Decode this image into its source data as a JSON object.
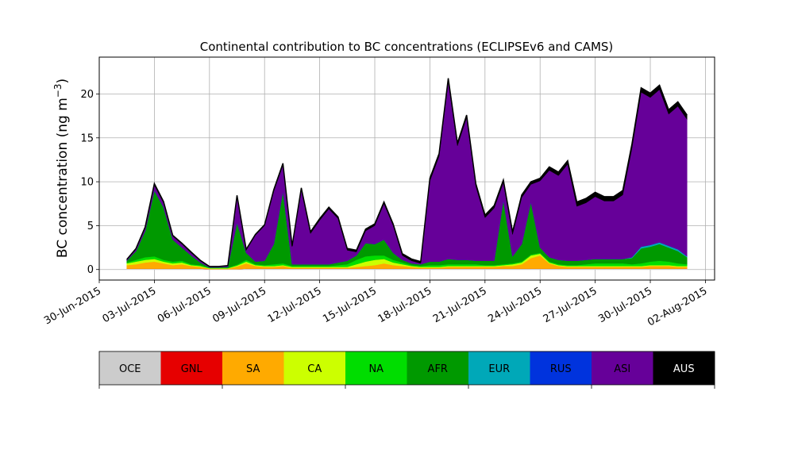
{
  "chart_data": {
    "type": "area",
    "title": "Continental contribution to BC concentrations (ECLIPSEv6 and CAMS)",
    "xlabel": "",
    "ylabel_main": "BC concentration (ng m",
    "ylabel_sup": "−3",
    "ylabel_close": ")",
    "stacked": true,
    "grid": true,
    "ylim": [
      -1.2,
      24.2
    ],
    "xlim": [
      "2015-06-30T00:00",
      "2015-08-02T12:00"
    ],
    "x_ticks": [
      "30-Jun-2015",
      "03-Jul-2015",
      "06-Jul-2015",
      "09-Jul-2015",
      "12-Jul-2015",
      "15-Jul-2015",
      "18-Jul-2015",
      "21-Jul-2015",
      "24-Jul-2015",
      "27-Jul-2015",
      "30-Jul-2015",
      "02-Aug-2015"
    ],
    "y_ticks": [
      "0",
      "5",
      "10",
      "15",
      "20"
    ],
    "x": [
      "2015-07-01T12:00",
      "2015-07-02T00:00",
      "2015-07-02T12:00",
      "2015-07-03T00:00",
      "2015-07-03T12:00",
      "2015-07-04T00:00",
      "2015-07-04T12:00",
      "2015-07-05T00:00",
      "2015-07-05T12:00",
      "2015-07-06T00:00",
      "2015-07-06T12:00",
      "2015-07-07T00:00",
      "2015-07-07T12:00",
      "2015-07-08T00:00",
      "2015-07-08T12:00",
      "2015-07-09T00:00",
      "2015-07-09T12:00",
      "2015-07-10T00:00",
      "2015-07-10T12:00",
      "2015-07-11T00:00",
      "2015-07-11T12:00",
      "2015-07-12T00:00",
      "2015-07-12T12:00",
      "2015-07-13T00:00",
      "2015-07-13T12:00",
      "2015-07-14T00:00",
      "2015-07-14T12:00",
      "2015-07-15T00:00",
      "2015-07-15T12:00",
      "2015-07-16T00:00",
      "2015-07-16T12:00",
      "2015-07-17T00:00",
      "2015-07-17T12:00",
      "2015-07-18T00:00",
      "2015-07-18T12:00",
      "2015-07-19T00:00",
      "2015-07-19T12:00",
      "2015-07-20T00:00",
      "2015-07-20T12:00",
      "2015-07-21T00:00",
      "2015-07-21T12:00",
      "2015-07-22T00:00",
      "2015-07-22T12:00",
      "2015-07-23T00:00",
      "2015-07-23T12:00",
      "2015-07-24T00:00",
      "2015-07-24T12:00",
      "2015-07-25T00:00",
      "2015-07-25T12:00",
      "2015-07-26T00:00",
      "2015-07-26T12:00",
      "2015-07-27T00:00",
      "2015-07-27T12:00",
      "2015-07-28T00:00",
      "2015-07-28T12:00",
      "2015-07-29T00:00",
      "2015-07-29T12:00",
      "2015-07-30T00:00",
      "2015-07-30T12:00",
      "2015-07-31T00:00",
      "2015-07-31T12:00",
      "2015-08-01T00:00"
    ],
    "series": [
      {
        "name": "OCE",
        "color": "#cccccc",
        "values": [
          0.1,
          0.1,
          0.1,
          0.1,
          0.1,
          0.1,
          0.1,
          0.1,
          0.1,
          0.05,
          0.05,
          0.05,
          0.05,
          0.1,
          0.1,
          0.1,
          0.1,
          0.1,
          0.1,
          0.1,
          0.1,
          0.1,
          0.1,
          0.1,
          0.1,
          0.1,
          0.1,
          0.1,
          0.1,
          0.1,
          0.1,
          0.1,
          0.1,
          0.1,
          0.1,
          0.1,
          0.1,
          0.1,
          0.1,
          0.1,
          0.1,
          0.1,
          0.1,
          0.1,
          0.1,
          0.1,
          0.1,
          0.1,
          0.1,
          0.1,
          0.1,
          0.1,
          0.1,
          0.1,
          0.1,
          0.1,
          0.1,
          0.1,
          0.1,
          0.1,
          0.1,
          0.1
        ]
      },
      {
        "name": "GNL",
        "color": "#e60000",
        "values": [
          0,
          0,
          0,
          0,
          0,
          0,
          0,
          0,
          0,
          0,
          0,
          0,
          0,
          0,
          0,
          0,
          0,
          0,
          0,
          0,
          0,
          0,
          0,
          0,
          0,
          0,
          0,
          0,
          0,
          0,
          0,
          0,
          0,
          0,
          0,
          0,
          0,
          0,
          0,
          0,
          0,
          0,
          0,
          0,
          0,
          0,
          0,
          0,
          0,
          0,
          0,
          0,
          0,
          0,
          0,
          0,
          0,
          0,
          0,
          0,
          0,
          0
        ]
      },
      {
        "name": "SA",
        "color": "#ffaa00",
        "values": [
          0.4,
          0.5,
          0.7,
          0.8,
          0.6,
          0.4,
          0.5,
          0.3,
          0.2,
          0.05,
          0.05,
          0.05,
          0.3,
          0.6,
          0.3,
          0.2,
          0.2,
          0.3,
          0.1,
          0.1,
          0.1,
          0.1,
          0.1,
          0.1,
          0.1,
          0.2,
          0.3,
          0.4,
          0.6,
          0.4,
          0.3,
          0.2,
          0.1,
          0.1,
          0.1,
          0.2,
          0.2,
          0.2,
          0.2,
          0.2,
          0.2,
          0.3,
          0.3,
          0.5,
          1.2,
          1.5,
          0.6,
          0.3,
          0.2,
          0.2,
          0.2,
          0.2,
          0.2,
          0.2,
          0.2,
          0.2,
          0.2,
          0.3,
          0.3,
          0.3,
          0.2,
          0.2
        ]
      },
      {
        "name": "CA",
        "color": "#ccff00",
        "values": [
          0.2,
          0.3,
          0.3,
          0.3,
          0.2,
          0.2,
          0.2,
          0.1,
          0.1,
          0.05,
          0.05,
          0.05,
          0.1,
          0.2,
          0.1,
          0.1,
          0.1,
          0.1,
          0.1,
          0.1,
          0.1,
          0.1,
          0.1,
          0.1,
          0.1,
          0.3,
          0.5,
          0.6,
          0.5,
          0.3,
          0.2,
          0.1,
          0.1,
          0.1,
          0.1,
          0.1,
          0.1,
          0.1,
          0.1,
          0.1,
          0.1,
          0.1,
          0.2,
          0.2,
          0.3,
          0.2,
          0.1,
          0.1,
          0.1,
          0.1,
          0.1,
          0.1,
          0.1,
          0.1,
          0.1,
          0.1,
          0.1,
          0.1,
          0.1,
          0.1,
          0.1,
          0.1
        ]
      },
      {
        "name": "NA",
        "color": "#00dd00",
        "values": [
          0.1,
          0.2,
          0.3,
          0.3,
          0.2,
          0.2,
          0.2,
          0.1,
          0.1,
          0.05,
          0.05,
          0.05,
          0.1,
          0.2,
          0.1,
          0.1,
          0.2,
          0.2,
          0.1,
          0.1,
          0.1,
          0.1,
          0.1,
          0.2,
          0.3,
          0.5,
          0.6,
          0.5,
          0.4,
          0.3,
          0.2,
          0.1,
          0.1,
          0.2,
          0.2,
          0.2,
          0.2,
          0.2,
          0.2,
          0.1,
          0.1,
          0.1,
          0.1,
          0.1,
          0.1,
          0.1,
          0.1,
          0.1,
          0.1,
          0.1,
          0.2,
          0.3,
          0.3,
          0.3,
          0.3,
          0.2,
          0.3,
          0.4,
          0.5,
          0.4,
          0.3,
          0.2
        ]
      },
      {
        "name": "AFR",
        "color": "#009900",
        "values": [
          0.2,
          1.0,
          3.0,
          7.5,
          6.0,
          2.5,
          1.5,
          1.0,
          0.3,
          0.05,
          0.05,
          0.1,
          4.8,
          0.8,
          0.3,
          0.5,
          2.3,
          8.2,
          0.2,
          0.2,
          0.2,
          0.2,
          0.2,
          0.3,
          0.4,
          0.5,
          1.5,
          1.3,
          1.8,
          0.8,
          0.3,
          0.2,
          0.2,
          0.4,
          0.4,
          0.6,
          0.5,
          0.5,
          0.4,
          0.5,
          0.5,
          7.3,
          0.8,
          2.0,
          6.0,
          0.6,
          0.5,
          0.5,
          0.5,
          0.5,
          0.5,
          0.5,
          0.5,
          0.5,
          0.5,
          0.7,
          1.7,
          1.7,
          1.9,
          1.6,
          1.4,
          0.8
        ]
      },
      {
        "name": "EUR",
        "color": "#00a8b8",
        "values": [
          0,
          0,
          0,
          0,
          0,
          0,
          0,
          0,
          0,
          0,
          0,
          0,
          0,
          0,
          0,
          0,
          0,
          0,
          0,
          0,
          0,
          0,
          0,
          0,
          0,
          0,
          0,
          0,
          0,
          0,
          0,
          0,
          0,
          0,
          0,
          0,
          0,
          0,
          0,
          0,
          0,
          0,
          0,
          0,
          0,
          0,
          0,
          0,
          0,
          0,
          0,
          0,
          0,
          0,
          0,
          0.1,
          0.2,
          0.2,
          0.2,
          0.2,
          0.2,
          0.1
        ]
      },
      {
        "name": "RUS",
        "color": "#0033dd",
        "values": [
          0,
          0,
          0,
          0,
          0,
          0,
          0,
          0,
          0,
          0,
          0,
          0,
          0,
          0,
          0,
          0,
          0,
          0,
          0,
          0,
          0,
          0,
          0,
          0,
          0,
          0,
          0,
          0,
          0,
          0,
          0,
          0,
          0,
          0,
          0,
          0,
          0,
          0,
          0,
          0,
          0,
          0,
          0,
          0,
          0,
          0,
          0,
          0,
          0,
          0,
          0,
          0,
          0,
          0,
          0,
          0,
          0,
          0,
          0,
          0,
          0,
          0
        ]
      },
      {
        "name": "ASI",
        "color": "#660099",
        "values": [
          0.1,
          0.2,
          0.3,
          0.6,
          0.5,
          0.4,
          0.4,
          0.3,
          0.2,
          0.05,
          0.05,
          0.1,
          3.0,
          0.3,
          3.0,
          4.0,
          6.0,
          3.0,
          2.0,
          8.5,
          3.5,
          5.0,
          6.3,
          5.0,
          1.2,
          0.4,
          1.4,
          2.1,
          4.1,
          3.1,
          0.5,
          0.3,
          0.1,
          9.2,
          12.0,
          20.2,
          13.0,
          16.2,
          8.5,
          4.9,
          6.0,
          2.0,
          2.5,
          5.3,
          2.0,
          7.6,
          9.9,
          9.6,
          11.0,
          6.2,
          6.5,
          7.1,
          6.6,
          6.6,
          7.3,
          12.4,
          17.6,
          16.8,
          17.4,
          15.0,
          16.3,
          15.6
        ]
      },
      {
        "name": "AUS",
        "color": "#000000",
        "values": [
          0.05,
          0.1,
          0.15,
          0.2,
          0.15,
          0.1,
          0.1,
          0.1,
          0.05,
          0.05,
          0.05,
          0.05,
          0.1,
          0.1,
          0.1,
          0.1,
          0.2,
          0.2,
          0.1,
          0.2,
          0.2,
          0.2,
          0.2,
          0.2,
          0.2,
          0.2,
          0.2,
          0.2,
          0.2,
          0.2,
          0.2,
          0.2,
          0.2,
          0.3,
          0.3,
          0.4,
          0.3,
          0.3,
          0.3,
          0.3,
          0.3,
          0.3,
          0.3,
          0.3,
          0.3,
          0.3,
          0.4,
          0.4,
          0.4,
          0.5,
          0.5,
          0.5,
          0.5,
          0.5,
          0.5,
          0.5,
          0.5,
          0.5,
          0.5,
          0.5,
          0.5,
          0.5
        ]
      }
    ],
    "legend_placement": "bottom colorbar",
    "legend": [
      "OCE",
      "GNL",
      "SA",
      "CA",
      "NA",
      "AFR",
      "EUR",
      "RUS",
      "ASI",
      "AUS"
    ]
  }
}
